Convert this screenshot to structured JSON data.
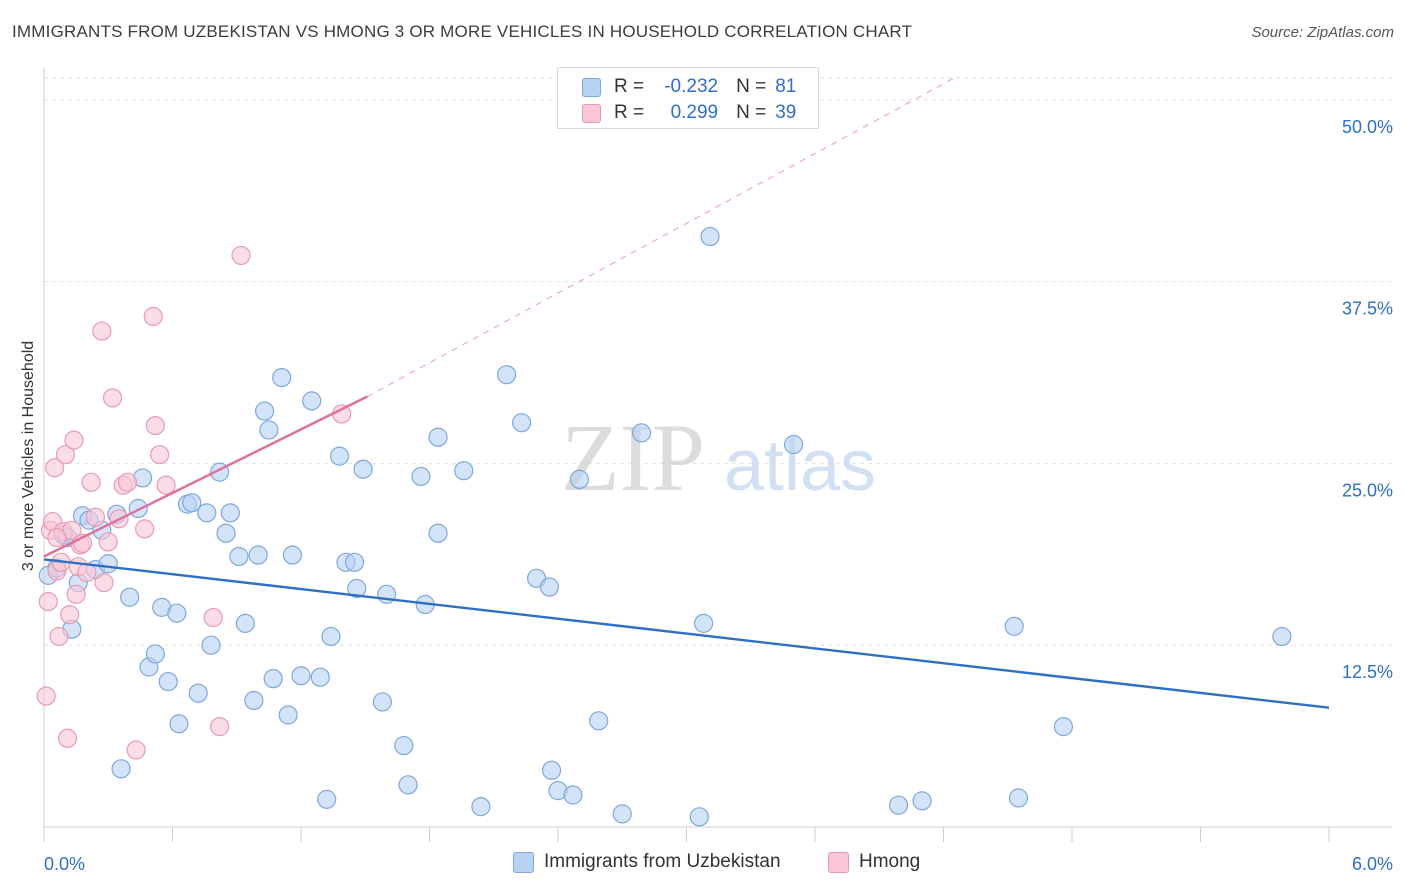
{
  "header": {
    "title": "IMMIGRANTS FROM UZBEKISTAN VS HMONG 3 OR MORE VEHICLES IN HOUSEHOLD CORRELATION CHART",
    "source": "Source: ZipAtlas.com"
  },
  "legend": {
    "rows": [
      {
        "r_label": "R =",
        "r_value": "-0.232",
        "n_label": "N =",
        "n_value": "81"
      },
      {
        "r_label": "R =",
        "r_value": "0.299",
        "n_label": "N =",
        "n_value": "39"
      }
    ]
  },
  "bottom_legend": [
    "Immigrants from Uzbekistan",
    "Hmong"
  ],
  "colors": {
    "blue_fill": "#b8d2f3",
    "blue_stroke": "#7ea7dd",
    "blue_line": "#2f6fc4",
    "pink_fill": "#f8c6d5",
    "pink_stroke": "#e99ab3",
    "pink_line": "#e0709a",
    "grid": "#e2e2e2",
    "tick_label": "#2f6fc4"
  },
  "watermark": {
    "zip": "ZIP",
    "atlas": "atlas"
  },
  "chart_data": {
    "type": "scatter",
    "title": "IMMIGRANTS FROM UZBEKISTAN VS HMONG 3 OR MORE VEHICLES IN HOUSEHOLD CORRELATION CHART",
    "ylabel": "3 or more Vehicles in Household",
    "xlabel": "",
    "xlim": [
      0,
      6.0
    ],
    "ylim": [
      0,
      51.5
    ],
    "x_tick_labels": [
      "0.0%",
      "6.0%"
    ],
    "y_ticks": [
      12.5,
      25.0,
      37.5,
      50.0
    ],
    "y_tick_labels": [
      "12.5%",
      "25.0%",
      "37.5%",
      "50.0%"
    ],
    "grid": true,
    "legend_position": "top-center",
    "series": [
      {
        "name": "Immigrants from Uzbekistan",
        "color": "#b8d2f3",
        "points": [
          [
            0.02,
            17.3
          ],
          [
            0.06,
            17.8
          ],
          [
            0.09,
            20.1
          ],
          [
            0.13,
            13.6
          ],
          [
            0.16,
            16.8
          ],
          [
            0.18,
            21.4
          ],
          [
            0.21,
            21.1
          ],
          [
            0.24,
            17.7
          ],
          [
            0.27,
            20.4
          ],
          [
            0.3,
            18.1
          ],
          [
            0.34,
            21.5
          ],
          [
            0.36,
            4.0
          ],
          [
            0.4,
            15.8
          ],
          [
            0.44,
            21.9
          ],
          [
            0.46,
            24.0
          ],
          [
            0.49,
            11.0
          ],
          [
            0.52,
            11.9
          ],
          [
            0.55,
            15.1
          ],
          [
            0.58,
            10.0
          ],
          [
            0.62,
            14.7
          ],
          [
            0.63,
            7.1
          ],
          [
            0.67,
            22.2
          ],
          [
            0.69,
            22.3
          ],
          [
            0.72,
            9.2
          ],
          [
            0.76,
            21.6
          ],
          [
            0.78,
            12.5
          ],
          [
            0.82,
            24.4
          ],
          [
            0.85,
            20.2
          ],
          [
            0.87,
            21.6
          ],
          [
            0.91,
            18.6
          ],
          [
            0.94,
            14.0
          ],
          [
            0.98,
            8.7
          ],
          [
            1.0,
            18.7
          ],
          [
            1.03,
            28.6
          ],
          [
            1.05,
            27.3
          ],
          [
            1.07,
            10.2
          ],
          [
            1.11,
            30.9
          ],
          [
            1.14,
            7.7
          ],
          [
            1.16,
            18.7
          ],
          [
            1.2,
            10.4
          ],
          [
            1.25,
            29.3
          ],
          [
            1.29,
            10.3
          ],
          [
            1.32,
            1.9
          ],
          [
            1.34,
            13.1
          ],
          [
            1.38,
            25.5
          ],
          [
            1.41,
            18.2
          ],
          [
            1.45,
            18.2
          ],
          [
            1.46,
            16.4
          ],
          [
            1.49,
            24.6
          ],
          [
            1.6,
            16.0
          ],
          [
            1.58,
            8.6
          ],
          [
            1.68,
            5.6
          ],
          [
            1.7,
            2.9
          ],
          [
            1.76,
            24.1
          ],
          [
            1.78,
            15.3
          ],
          [
            1.84,
            20.2
          ],
          [
            1.84,
            26.8
          ],
          [
            1.96,
            24.5
          ],
          [
            2.04,
            1.4
          ],
          [
            2.16,
            31.1
          ],
          [
            2.23,
            27.8
          ],
          [
            2.3,
            17.1
          ],
          [
            2.36,
            16.5
          ],
          [
            2.37,
            3.9
          ],
          [
            2.4,
            2.5
          ],
          [
            2.47,
            2.2
          ],
          [
            2.5,
            23.9
          ],
          [
            2.59,
            7.3
          ],
          [
            2.7,
            0.9
          ],
          [
            2.79,
            27.1
          ],
          [
            3.06,
            0.7
          ],
          [
            3.08,
            14.0
          ],
          [
            3.11,
            40.6
          ],
          [
            3.5,
            26.3
          ],
          [
            3.99,
            1.5
          ],
          [
            4.1,
            1.8
          ],
          [
            4.53,
            13.8
          ],
          [
            4.55,
            2.0
          ],
          [
            4.76,
            6.9
          ],
          [
            5.78,
            13.1
          ],
          [
            0.11,
            19.9
          ]
        ]
      },
      {
        "name": "Hmong",
        "color": "#f8c6d5",
        "points": [
          [
            0.01,
            9.0
          ],
          [
            0.02,
            15.5
          ],
          [
            0.03,
            20.4
          ],
          [
            0.04,
            21.0
          ],
          [
            0.05,
            24.7
          ],
          [
            0.06,
            17.6
          ],
          [
            0.07,
            13.1
          ],
          [
            0.08,
            18.2
          ],
          [
            0.09,
            20.3
          ],
          [
            0.1,
            25.6
          ],
          [
            0.11,
            6.1
          ],
          [
            0.12,
            14.6
          ],
          [
            0.13,
            20.4
          ],
          [
            0.14,
            26.6
          ],
          [
            0.15,
            16.0
          ],
          [
            0.16,
            17.9
          ],
          [
            0.17,
            19.4
          ],
          [
            0.18,
            19.5
          ],
          [
            0.2,
            17.5
          ],
          [
            0.22,
            23.7
          ],
          [
            0.24,
            21.3
          ],
          [
            0.27,
            34.1
          ],
          [
            0.28,
            16.8
          ],
          [
            0.3,
            19.6
          ],
          [
            0.32,
            29.5
          ],
          [
            0.35,
            21.2
          ],
          [
            0.37,
            23.5
          ],
          [
            0.39,
            23.7
          ],
          [
            0.43,
            5.3
          ],
          [
            0.47,
            20.5
          ],
          [
            0.51,
            35.1
          ],
          [
            0.52,
            27.6
          ],
          [
            0.54,
            25.6
          ],
          [
            0.57,
            23.5
          ],
          [
            0.79,
            14.4
          ],
          [
            0.82,
            6.9
          ],
          [
            0.92,
            39.3
          ],
          [
            1.39,
            28.4
          ],
          [
            0.06,
            19.9
          ]
        ]
      }
    ],
    "trend_lines": [
      {
        "series": "Immigrants from Uzbekistan",
        "x": [
          0.0,
          6.0
        ],
        "y": [
          18.4,
          8.2
        ],
        "style": "solid"
      },
      {
        "series": "Hmong",
        "x": [
          0.0,
          1.51
        ],
        "y": [
          18.6,
          29.6
        ],
        "style": "solid"
      },
      {
        "series": "Hmong",
        "x": [
          1.51,
          4.25
        ],
        "y": [
          29.6,
          51.5
        ],
        "style": "dashed"
      }
    ]
  }
}
